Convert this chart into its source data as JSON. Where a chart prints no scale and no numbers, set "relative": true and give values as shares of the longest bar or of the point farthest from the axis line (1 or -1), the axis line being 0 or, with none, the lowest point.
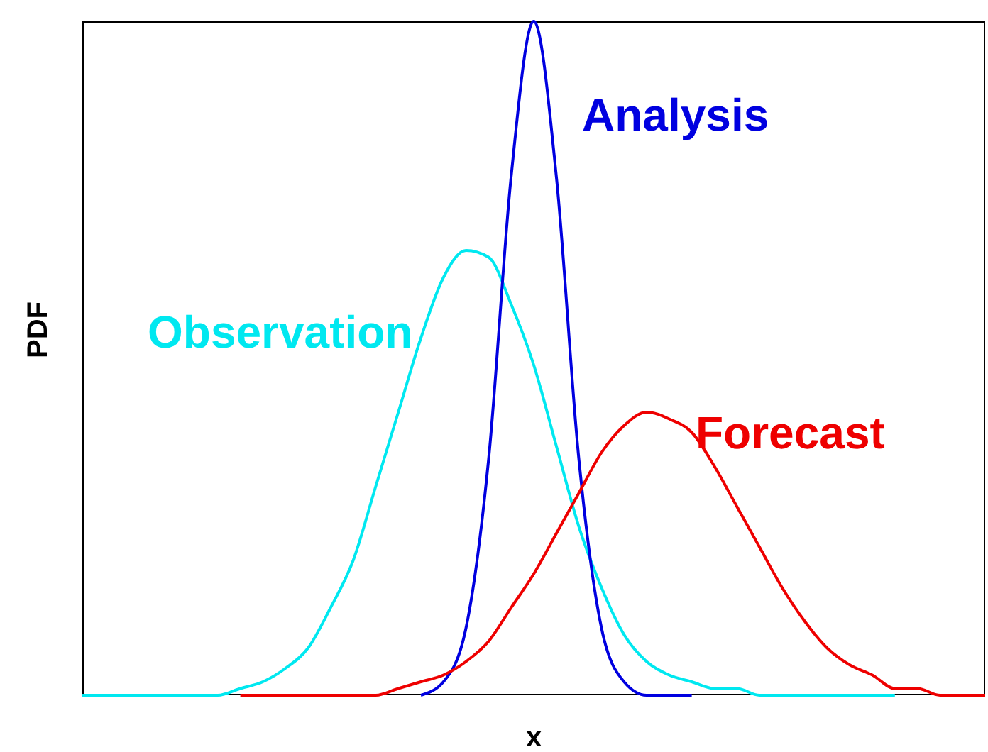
{
  "chart_data": {
    "type": "line",
    "relative": true,
    "xlabel": "x",
    "ylabel": "PDF",
    "grid": false,
    "legend": false,
    "tick_labels": false,
    "categories": [
      null,
      null,
      null,
      null,
      null,
      null,
      null,
      null,
      null,
      null,
      null,
      null,
      null,
      null,
      null,
      null,
      null,
      null,
      null,
      null,
      null,
      null,
      null,
      null,
      null,
      null,
      null,
      null,
      null,
      null,
      null,
      null,
      null,
      null,
      null,
      null,
      null,
      null,
      null,
      null,
      null
    ],
    "series": [
      {
        "name": "Observation",
        "color": "#00e8f0",
        "values": [
          0,
          0,
          0,
          0,
          0,
          0,
          0,
          0.01,
          0.02,
          0.04,
          0.07,
          0.13,
          0.2,
          0.31,
          0.42,
          0.53,
          0.62,
          0.66,
          0.65,
          0.58,
          0.49,
          0.37,
          0.25,
          0.16,
          0.09,
          0.05,
          0.03,
          0.02,
          0.01,
          0.01,
          0,
          0,
          0,
          0,
          0,
          0,
          0,
          null,
          null,
          null,
          null
        ]
      },
      {
        "name": "Analysis",
        "color": "#0000e0",
        "values": [
          null,
          null,
          null,
          null,
          null,
          null,
          null,
          null,
          null,
          null,
          null,
          null,
          null,
          null,
          null,
          0,
          0.02,
          0.1,
          0.35,
          0.77,
          1,
          0.77,
          0.35,
          0.1,
          0.02,
          0,
          0,
          0,
          null,
          null,
          null,
          null,
          null,
          null,
          null,
          null,
          null,
          null,
          null,
          null,
          null
        ]
      },
      {
        "name": "Forecast",
        "color": "#ee0000",
        "values": [
          null,
          null,
          null,
          null,
          null,
          null,
          null,
          0,
          0,
          0,
          0,
          0,
          0,
          0,
          0.01,
          0.02,
          0.03,
          0.05,
          0.08,
          0.13,
          0.18,
          0.24,
          0.3,
          0.36,
          0.4,
          0.42,
          0.41,
          0.39,
          0.34,
          0.28,
          0.22,
          0.16,
          0.11,
          0.07,
          0.045,
          0.03,
          0.01,
          0.01,
          0,
          0,
          0
        ]
      }
    ]
  }
}
